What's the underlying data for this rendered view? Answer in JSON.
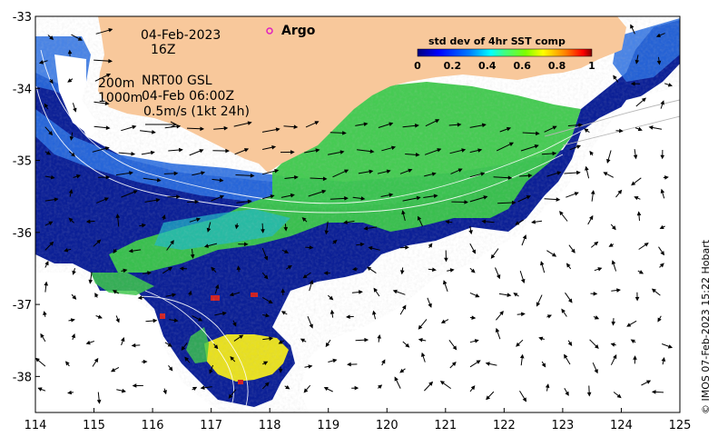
{
  "annotations": {
    "date": "04-Feb-2023",
    "hour": "16Z",
    "argo_label": "Argo",
    "depth_200": "200m",
    "product": "NRT00 GSL",
    "depth_1000": "1000m",
    "vector_time": "04-Feb 06:00Z",
    "scale_text": "0.5m/s (1kt 24h)"
  },
  "colorbar": {
    "title": "std dev of 4hr SST comp",
    "ticks": [
      "0",
      "0.2",
      "0.4",
      "0.6",
      "0.8",
      "1"
    ],
    "range": [
      0,
      1
    ]
  },
  "credit": "© IMOS 07-Feb-2023 15:22 Hobart",
  "axes": {
    "x_ticks": [
      "114",
      "115",
      "116",
      "117",
      "118",
      "119",
      "120",
      "121",
      "122",
      "123",
      "124",
      "125"
    ],
    "y_ticks": [
      "-33",
      "-34",
      "-35",
      "-36",
      "-37",
      "-38"
    ],
    "x_range": [
      114,
      125
    ],
    "y_range": [
      -38.5,
      -33
    ]
  },
  "colors": {
    "land": "#f8c89b",
    "background": "#ffffff",
    "deep_blue": "#0a1a8c",
    "mid_blue": "#1e5ad8",
    "green": "#3cc84a",
    "yellow": "#f0e020",
    "argo_marker": "#e020c0"
  }
}
